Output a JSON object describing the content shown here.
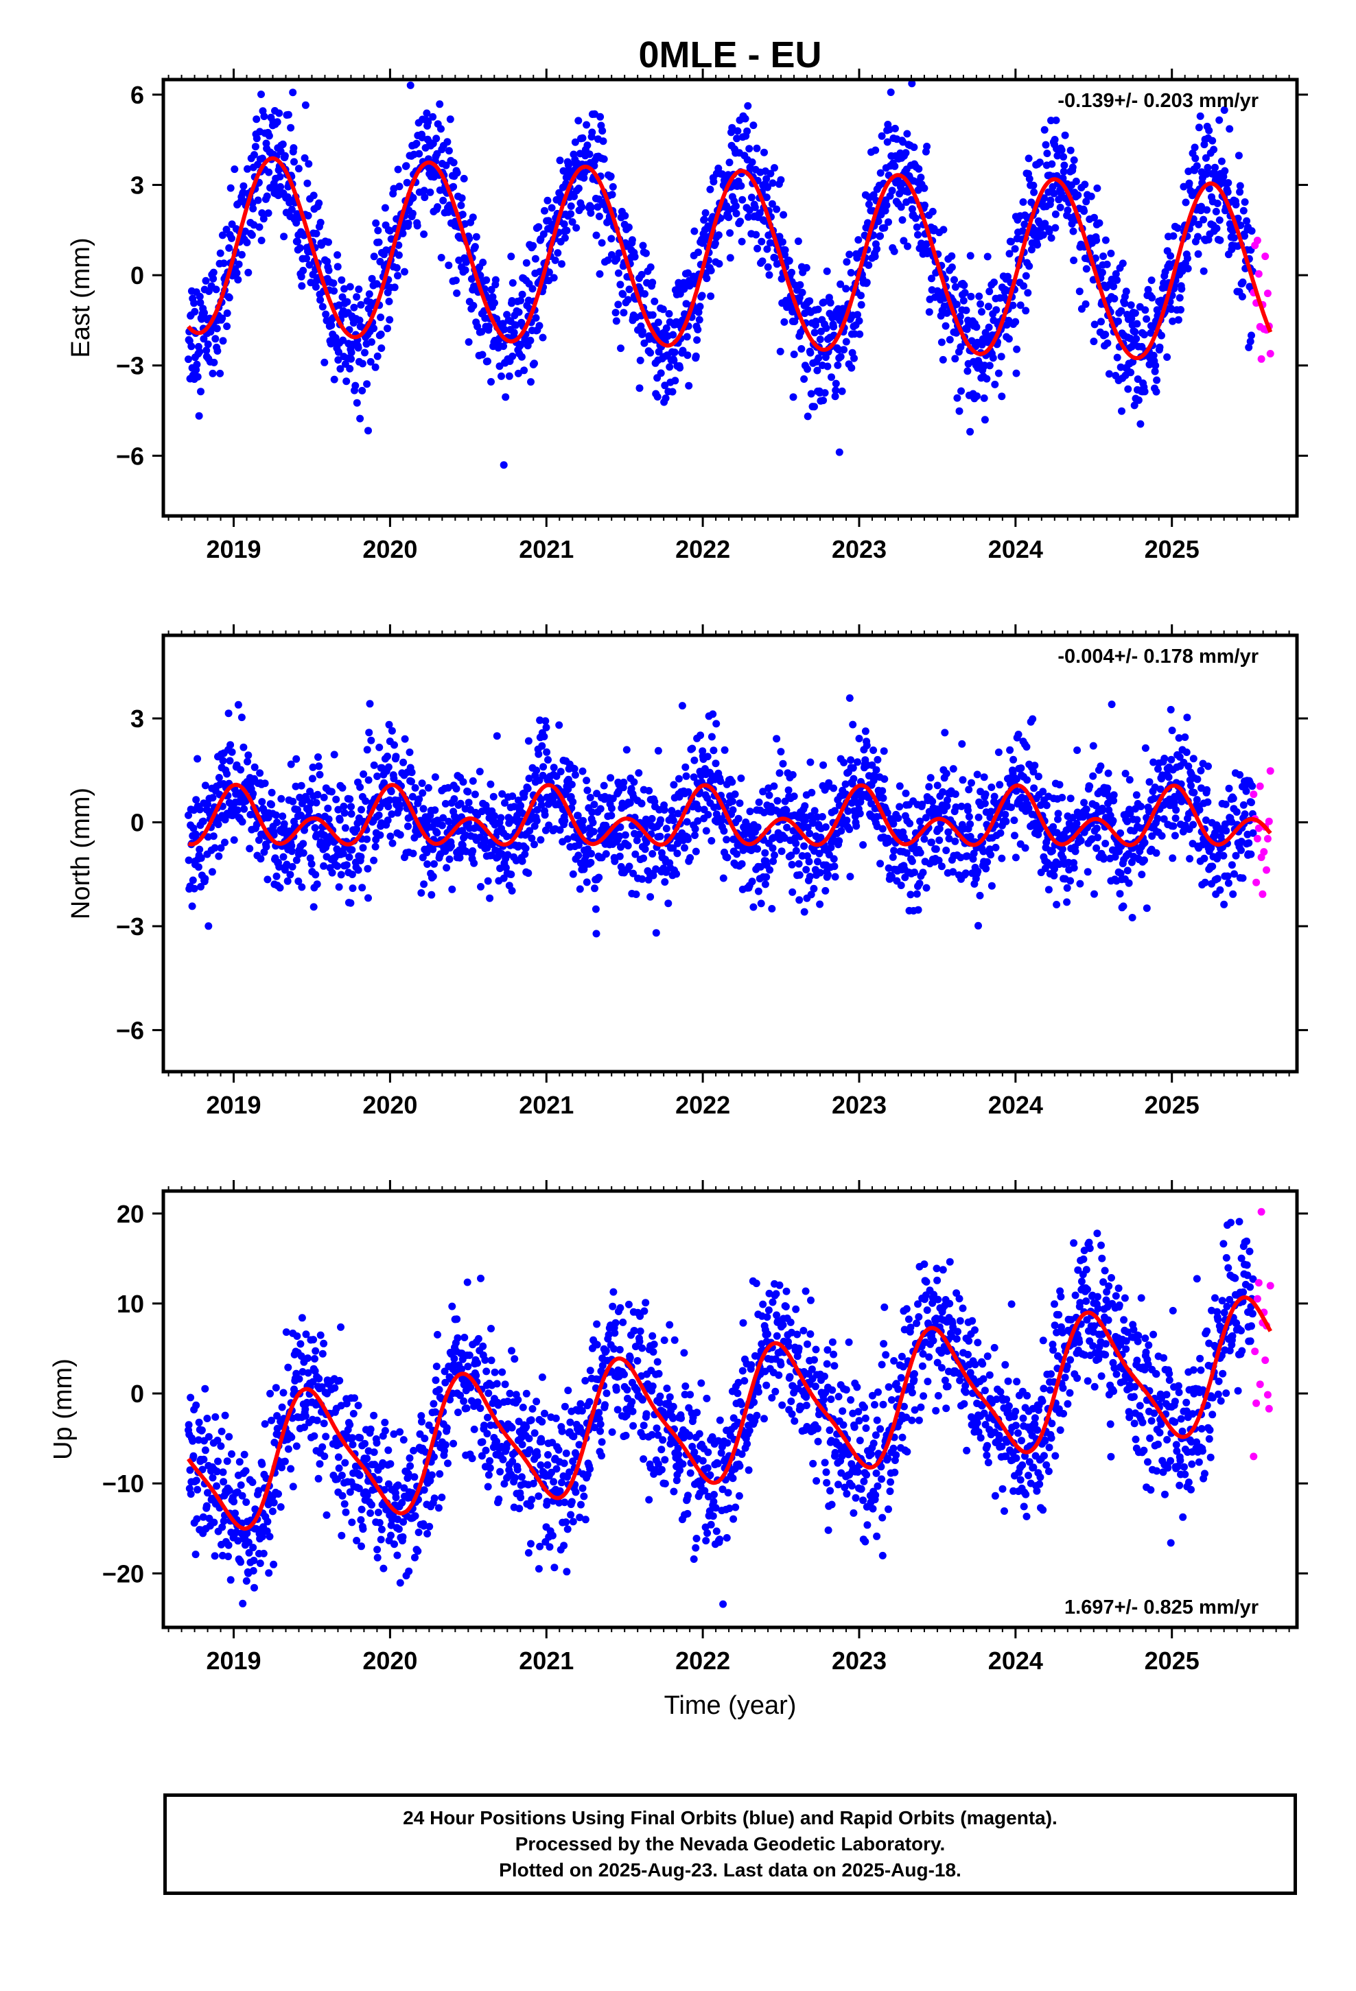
{
  "title": "0MLE - EU",
  "xlabel": "Time (year)",
  "colors": {
    "final": "#0000ff",
    "rapid": "#ff00ff",
    "model": "#ff0000"
  },
  "footer": {
    "line1": "24 Hour Positions Using Final Orbits (blue) and Rapid Orbits (magenta).",
    "line2": "Processed by the Nevada Geodetic Laboratory.",
    "line3": "Plotted on 2025-Aug-23. Last data on 2025-Aug-18."
  },
  "chart_data": [
    {
      "type": "scatter",
      "panel": "east",
      "ylabel": "East (mm)",
      "velocity": "-0.139+/- 0.203 mm/yr",
      "velocity_position": "top-right",
      "xlim": [
        2018.55,
        2025.8
      ],
      "ylim": [
        -8.0,
        6.5
      ],
      "xticks": [
        2019,
        2020,
        2021,
        2022,
        2023,
        2024,
        2025
      ],
      "yticks": [
        6,
        3,
        0,
        -3,
        -6
      ],
      "start": 2018.71,
      "end_final": 2025.52,
      "end": 2025.63,
      "model": {
        "offset": 0.5,
        "trend": -0.139,
        "annual_sin": 2.92,
        "annual_cos": -0.2,
        "semiannual_sin": 0.1,
        "semiannual_cos": -0.08
      },
      "noise_sd": 1.05,
      "series": [
        {
          "name": "Final Orbits (blue)",
          "color": "#0000ff"
        },
        {
          "name": "Rapid Orbits (magenta)",
          "color": "#ff00ff"
        },
        {
          "color": "#ff0000"
        }
      ]
    },
    {
      "type": "scatter",
      "panel": "north",
      "ylabel": "North (mm)",
      "velocity": "-0.004+/- 0.178 mm/yr",
      "velocity_position": "top-right",
      "xlim": [
        2018.55,
        2025.8
      ],
      "ylim": [
        -7.2,
        5.4
      ],
      "xticks": [
        2019,
        2020,
        2021,
        2022,
        2023,
        2024,
        2025
      ],
      "yticks": [
        3,
        0,
        -3,
        -6
      ],
      "start": 2018.71,
      "end_final": 2025.52,
      "end": 2025.63,
      "model": {
        "offset": 0.0,
        "trend": -0.004,
        "annual_sin": 0.05,
        "annual_cos": 0.48,
        "semiannual_sin": 0.1,
        "semiannual_cos": 0.58
      },
      "noise_sd": 0.85,
      "series": [
        {
          "name": "Final Orbits (blue)",
          "color": "#0000ff"
        },
        {
          "name": "Rapid Orbits (magenta)",
          "color": "#ff00ff"
        },
        {
          "color": "#ff0000"
        }
      ]
    },
    {
      "type": "scatter",
      "panel": "up",
      "ylabel": "Up (mm)",
      "velocity": "1.697+/- 0.825 mm/yr",
      "velocity_position": "bottom-right",
      "xlim": [
        2018.55,
        2025.8
      ],
      "ylim": [
        -26.0,
        22.5
      ],
      "xticks": [
        2019,
        2020,
        2021,
        2022,
        2023,
        2024,
        2025
      ],
      "yticks": [
        20,
        10,
        0,
        -10,
        -20
      ],
      "start": 2018.71,
      "end_final": 2025.52,
      "end": 2025.63,
      "model": {
        "offset": -2.8,
        "trend": 1.697,
        "annual_sin": -0.6,
        "annual_cos": -6.8,
        "semiannual_sin": -1.5,
        "semiannual_cos": 0.5
      },
      "noise_sd": 4.2,
      "series": [
        {
          "name": "Final Orbits (blue)",
          "color": "#0000ff"
        },
        {
          "name": "Rapid Orbits (magenta)",
          "color": "#ff00ff"
        },
        {
          "color": "#ff0000"
        }
      ]
    }
  ]
}
